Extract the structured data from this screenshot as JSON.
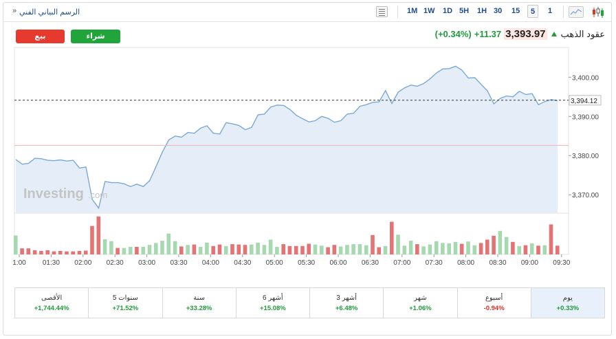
{
  "toolbar": {
    "title": "الرسم البياني الفني",
    "chevron": "»",
    "timeframes": [
      "1M",
      "1W",
      "1D",
      "5H",
      "1H",
      "30",
      "15",
      "5",
      "1"
    ],
    "active_timeframe": "5"
  },
  "header": {
    "sell_label": "بيع",
    "buy_label": "شراء",
    "instrument_name": "عقود الذهب",
    "price": "3,393.97",
    "change": "+11.37",
    "change_pct": "(+0.34%)"
  },
  "chart": {
    "watermark": "Investing",
    "watermark_suffix": ".com",
    "current_price_label": "3,394.12",
    "colors": {
      "line": "#7ba8d6",
      "area": "#e5eef8",
      "up_volume": "#a6d9b0",
      "down_volume": "#e57373",
      "ref_line": "#f4b3b3"
    }
  },
  "chart_data": {
    "type": "area",
    "y_ticks": [
      "3,400.00",
      "3,390.00",
      "3,380.00",
      "3,370.00"
    ],
    "ylim": [
      3365.3,
      3407.6
    ],
    "reference_level": 3382.6,
    "current_level": 3394.12,
    "x_ticks": [
      "1:00",
      "01:30",
      "02:00",
      "02:30",
      "03:00",
      "03:30",
      "04:00",
      "04:30",
      "05:00",
      "05:30",
      "06:00",
      "06:30",
      "07:00",
      "07:30",
      "08:00",
      "08:30",
      "09:00",
      "09:30"
    ],
    "price": [
      3379.0,
      3377.8,
      3378.0,
      3379.3,
      3379.2,
      3378.8,
      3378.7,
      3378.9,
      3378.6,
      3378.8,
      3376.8,
      3377.1,
      3368.8,
      3366.6,
      3373.4,
      3373.1,
      3373.1,
      3372.8,
      3372.1,
      3372.7,
      3372.1,
      3373.6,
      3377.2,
      3380.9,
      3384.0,
      3385.0,
      3384.7,
      3385.9,
      3385.7,
      3387.0,
      3387.6,
      3385.7,
      3385.5,
      3388.4,
      3388.1,
      3387.7,
      3386.6,
      3387.2,
      3390.4,
      3390.6,
      3392.4,
      3392.9,
      3392.8,
      3391.8,
      3390.3,
      3389.4,
      3388.6,
      3388.9,
      3390.0,
      3389.5,
      3388.5,
      3388.9,
      3390.6,
      3390.8,
      3392.6,
      3393.0,
      3393.6,
      3393.7,
      3396.6,
      3393.3,
      3396.2,
      3397.3,
      3398.0,
      3397.7,
      3398.4,
      3399.6,
      3401.1,
      3402.1,
      3402.2,
      3402.8,
      3401.8,
      3399.8,
      3399.9,
      3398.2,
      3396.5,
      3393.2,
      3394.6,
      3395.2,
      3395.0,
      3396.4,
      3395.6,
      3395.8,
      3393.0,
      3393.8,
      3394.3,
      3394.0
    ],
    "volume": [
      5,
      1.6,
      1.6,
      1.1,
      0.9,
      1.1,
      0.8,
      0.9,
      0.8,
      0.8,
      0.9,
      1,
      7.5,
      10,
      4,
      3.5,
      1.7,
      1.7,
      2,
      2,
      2,
      2.5,
      3,
      3.6,
      5.5,
      3.5,
      2.1,
      2.5,
      2.6,
      2,
      3.1,
      2.2,
      2.6,
      2.2,
      2.7,
      2.6,
      2.5,
      2.6,
      3.1,
      2.5,
      3.9,
      2,
      2.7,
      2.2,
      2.2,
      2.2,
      2.8,
      2.6,
      2.3,
      1.9,
      2.5,
      2.1,
      2.5,
      2.7,
      2.7,
      2.4,
      5.1,
      1.9,
      2.2,
      8.6,
      5.2,
      2.3,
      3.6,
      2.7,
      2.1,
      2.6,
      3.5,
      3,
      2.9,
      3.3,
      2.8,
      3.4,
      2.4,
      3,
      3.9,
      4.9,
      6.2,
      4.6,
      3.3,
      2.2,
      2.4,
      2.9,
      2.3,
      2.4,
      7.9,
      2.3
    ],
    "volume_direction": [
      "up",
      "down",
      "down",
      "down",
      "down",
      "down",
      "down",
      "down",
      "down",
      "down",
      "down",
      "down",
      "down",
      "down",
      "up",
      "up",
      "down",
      "up",
      "up",
      "down",
      "up",
      "up",
      "up",
      "up",
      "up",
      "up",
      "down",
      "up",
      "down",
      "up",
      "up",
      "down",
      "down",
      "up",
      "down",
      "down",
      "down",
      "up",
      "up",
      "up",
      "up",
      "up",
      "down",
      "down",
      "down",
      "down",
      "down",
      "up",
      "up",
      "down",
      "down",
      "up",
      "up",
      "up",
      "up",
      "up",
      "down",
      "down",
      "up",
      "down",
      "up",
      "up",
      "up",
      "down",
      "up",
      "up",
      "up",
      "up",
      "up",
      "up",
      "down",
      "up",
      "up",
      "down",
      "down",
      "down",
      "up",
      "up",
      "down",
      "up",
      "down",
      "up",
      "down",
      "up",
      "down",
      "down"
    ]
  },
  "performance": [
    {
      "label": "الأقصى",
      "value": "+1,744.44%",
      "dir": "pos"
    },
    {
      "label": "5 سنوات",
      "value": "+71.52%",
      "dir": "pos"
    },
    {
      "label": "سنة",
      "value": "+33.28%",
      "dir": "pos"
    },
    {
      "label": "6 أشهر",
      "value": "+15.08%",
      "dir": "pos"
    },
    {
      "label": "3 أشهر",
      "value": "+6.48%",
      "dir": "pos"
    },
    {
      "label": "شهر",
      "value": "+1.06%",
      "dir": "pos"
    },
    {
      "label": "أسبوع",
      "value": "-0.94%",
      "dir": "neg"
    },
    {
      "label": "يوم",
      "value": "+0.33%",
      "dir": "pos"
    }
  ]
}
